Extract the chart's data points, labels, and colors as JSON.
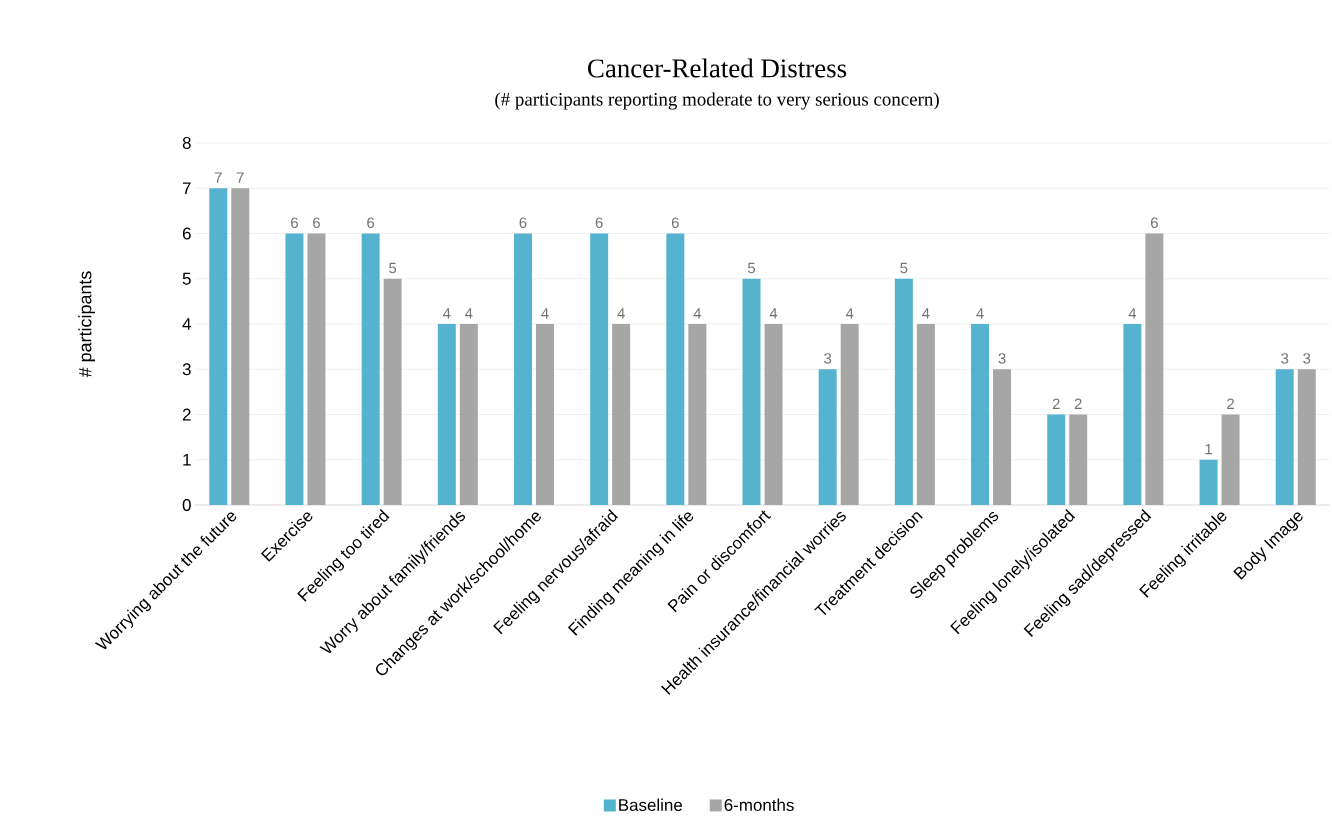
{
  "chart_data": {
    "type": "bar",
    "title": "Cancer-Related Distress",
    "subtitle": "(# participants reporting moderate to very serious concern)",
    "ylabel": "# participants",
    "categories": [
      "Worrying about the future",
      "Exercise",
      "Feeling too tired",
      "Worry about family/friends",
      "Changes at work/school/home",
      "Feeling nervous/afraid",
      "Finding meaning in life",
      "Pain or discomfort",
      "Health insurance/financial worries",
      "Treatment decision",
      "Sleep problems",
      "Feeling lonely/isolated",
      "Feeling sad/depressed",
      "Feeling irritable",
      "Body Image"
    ],
    "series": [
      {
        "name": "Baseline",
        "color": "#56b3cf",
        "values": [
          7,
          6,
          6,
          4,
          6,
          6,
          6,
          5,
          3,
          5,
          4,
          2,
          4,
          1,
          3
        ]
      },
      {
        "name": "6-months",
        "color": "#a6a6a6",
        "values": [
          7,
          6,
          5,
          4,
          4,
          4,
          4,
          4,
          4,
          4,
          3,
          2,
          6,
          2,
          3
        ]
      }
    ],
    "ylim": [
      0,
      8
    ],
    "yticks": [
      0,
      1,
      2,
      3,
      4,
      5,
      6,
      7,
      8
    ],
    "grid": "y",
    "legend": "bottom",
    "data_labels": true
  }
}
